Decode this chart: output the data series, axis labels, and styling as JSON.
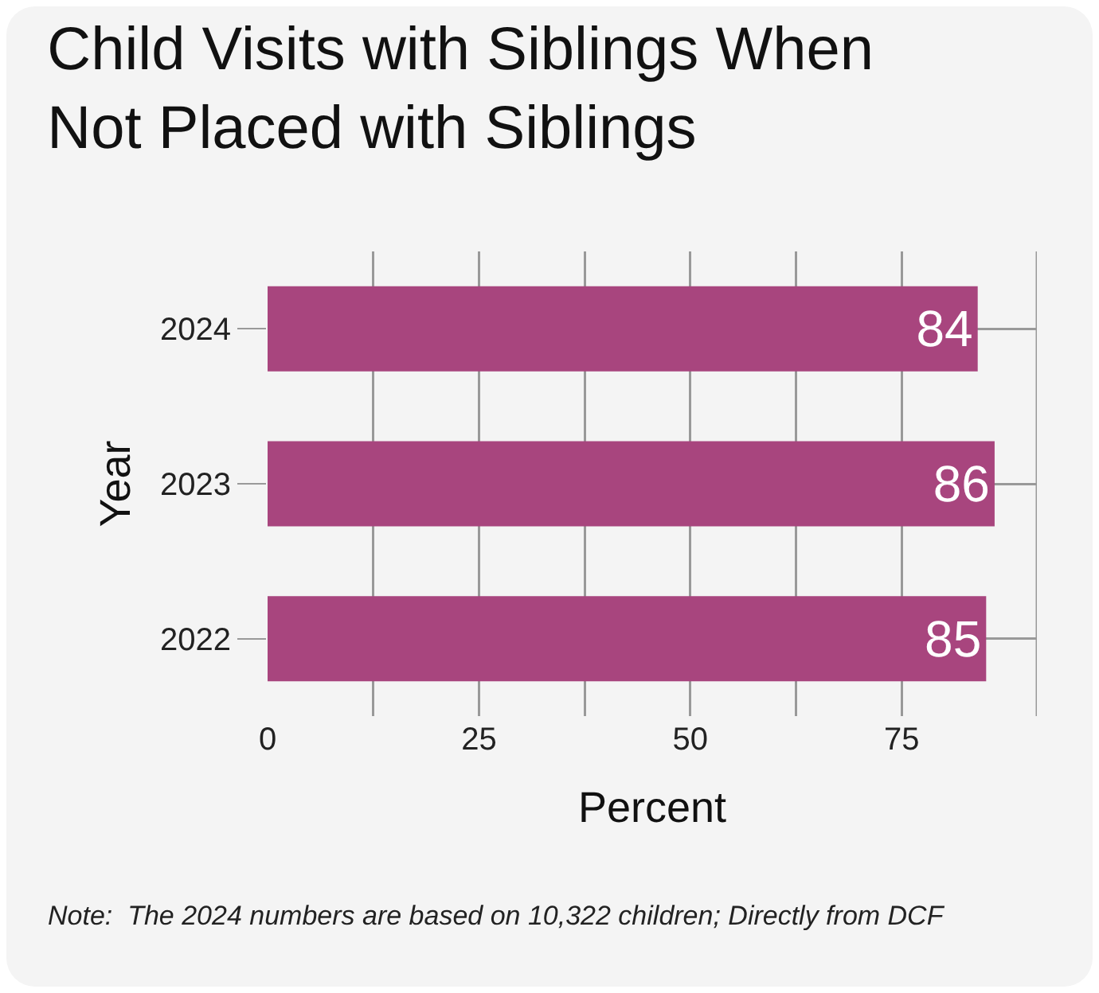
{
  "chart_data": {
    "type": "bar",
    "orientation": "horizontal",
    "title": "Child Visits with Siblings When\nNot Placed with Siblings",
    "xlabel": "Percent",
    "ylabel": "Year",
    "categories": [
      "2024",
      "2023",
      "2022"
    ],
    "series": [
      {
        "color": "#a8457e",
        "values": [
          84,
          86,
          85
        ]
      }
    ],
    "data_labels": true,
    "xlim": [
      0,
      91
    ],
    "xticks": [
      0,
      {
        "value": 12.5,
        "label": null
      },
      25,
      {
        "value": 37.5,
        "label": null
      },
      50,
      {
        "value": 62.5,
        "label": null
      },
      75
    ],
    "grid": true,
    "legend": false,
    "annotations": [
      "Note:  The 2024 numbers are based on 10,322 children; Directly from DCF"
    ]
  }
}
